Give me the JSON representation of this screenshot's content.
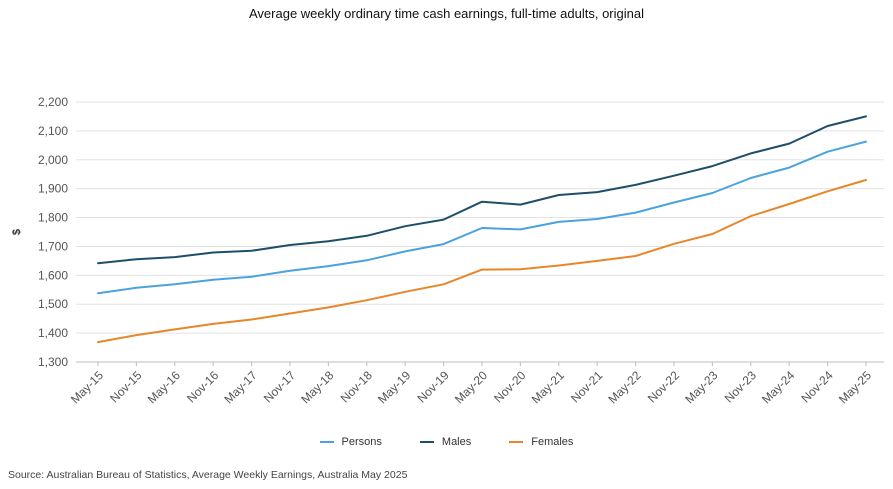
{
  "chart_data": {
    "type": "line",
    "title": "Average weekly ordinary time cash earnings, full-time adults, original",
    "xlabel": "",
    "ylabel": "$",
    "ylim": [
      1300,
      2200
    ],
    "yticks": [
      1300,
      1400,
      1500,
      1600,
      1700,
      1800,
      1900,
      2000,
      2100,
      2200
    ],
    "ytick_labels": [
      "1,300",
      "1,400",
      "1,500",
      "1,600",
      "1,700",
      "1,800",
      "1,900",
      "2,000",
      "2,100",
      "2,200"
    ],
    "grid": true,
    "legend_position": "bottom-center",
    "categories": [
      "May-15",
      "Nov-15",
      "May-16",
      "Nov-16",
      "May-17",
      "Nov-17",
      "May-18",
      "Nov-18",
      "May-19",
      "Nov-19",
      "May-20",
      "Nov-20",
      "May-21",
      "Nov-21",
      "May-22",
      "Nov-22",
      "May-23",
      "Nov-23",
      "May-24",
      "Nov-24",
      "May-25"
    ],
    "series": [
      {
        "name": "Persons",
        "color": "#4aa3df",
        "values": [
          1538,
          1557,
          1569,
          1585,
          1595,
          1616,
          1632,
          1652,
          1683,
          1708,
          1764,
          1759,
          1785,
          1795,
          1817,
          1852,
          1885,
          1937,
          1973,
          2028,
          2063
        ]
      },
      {
        "name": "Males",
        "color": "#1f4e6b",
        "values": [
          1642,
          1656,
          1663,
          1679,
          1685,
          1705,
          1718,
          1737,
          1770,
          1793,
          1855,
          1845,
          1878,
          1888,
          1913,
          1945,
          1978,
          2022,
          2056,
          2117,
          2150
        ]
      },
      {
        "name": "Females",
        "color": "#e8862a",
        "values": [
          1369,
          1393,
          1413,
          1432,
          1447,
          1468,
          1489,
          1514,
          1543,
          1569,
          1620,
          1621,
          1634,
          1650,
          1667,
          1709,
          1743,
          1805,
          1847,
          1891,
          1930
        ]
      }
    ]
  },
  "source_note": "Source: Australian Bureau of Statistics, Average Weekly Earnings, Australia May 2025"
}
